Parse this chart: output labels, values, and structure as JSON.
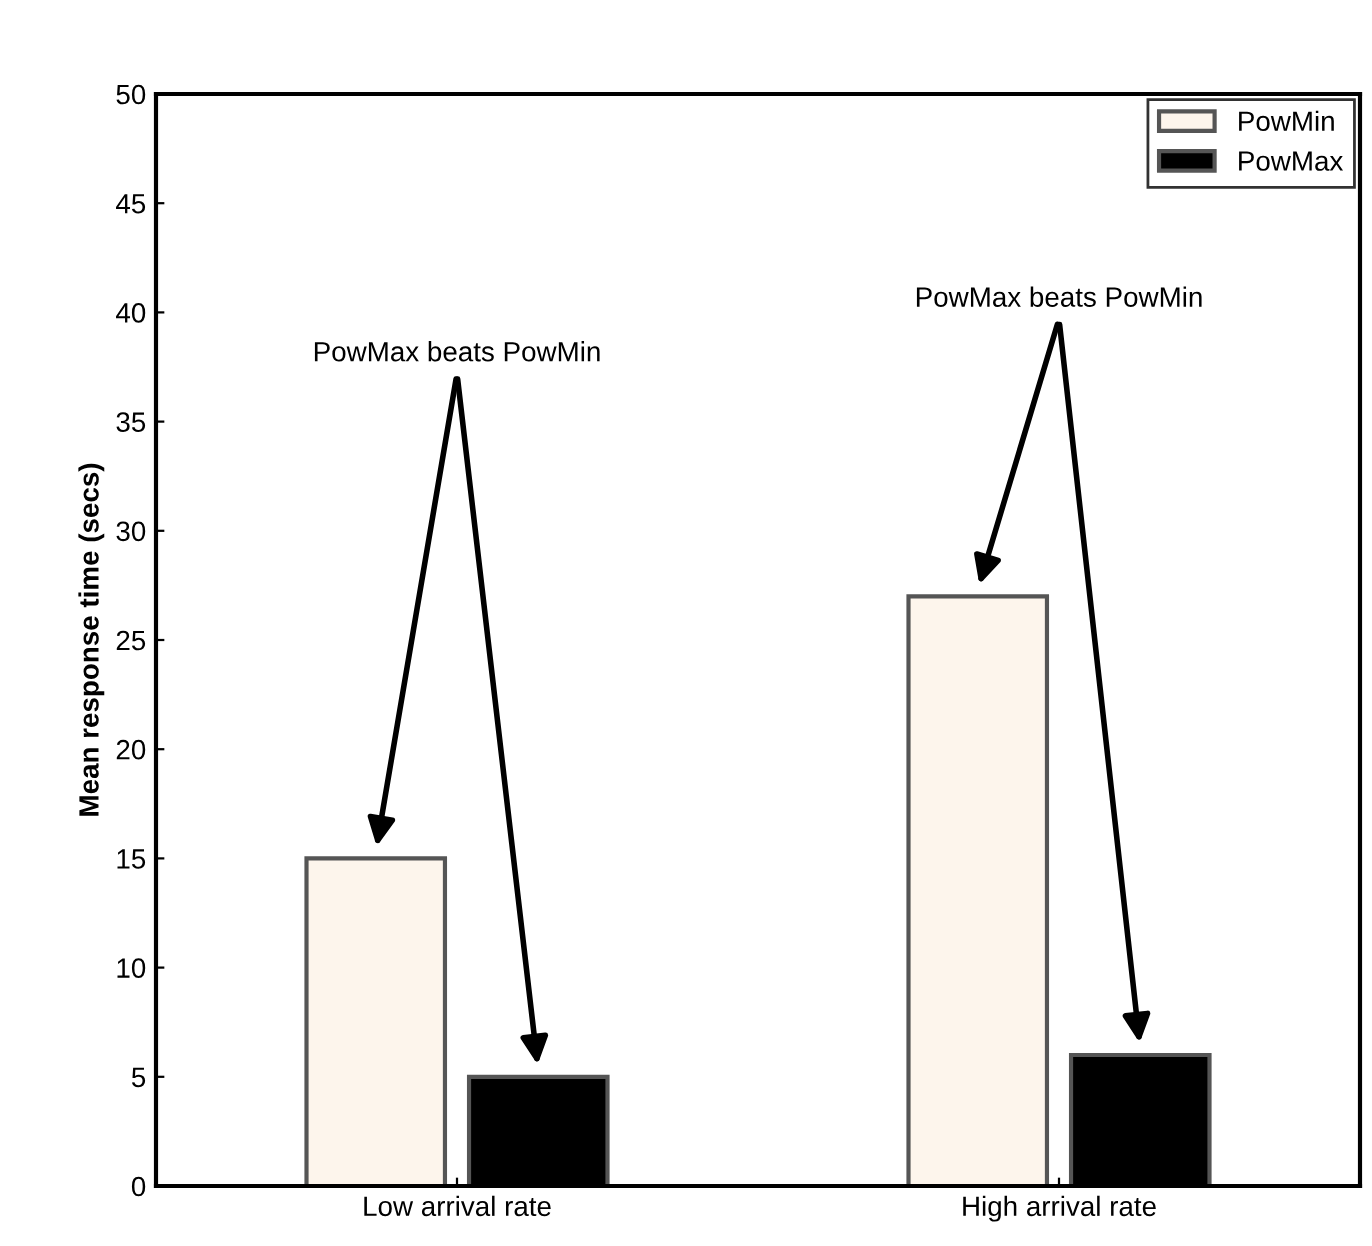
{
  "chart_data": {
    "type": "bar",
    "ylabel": "Mean response time (secs)",
    "categories": [
      "Low arrival rate",
      "High arrival rate"
    ],
    "series": [
      {
        "name": "PowMin",
        "color": "#fdf5ec",
        "values": [
          15,
          27
        ]
      },
      {
        "name": "PowMax",
        "color": "#000000",
        "values": [
          5,
          6
        ]
      }
    ],
    "ylim": [
      0,
      50
    ],
    "yticks": [
      0,
      5,
      10,
      15,
      20,
      25,
      30,
      35,
      40,
      45,
      50
    ],
    "grid": false,
    "legend": "top right",
    "annotations": [
      "PowMax beats PowMin",
      "PowMax beats PowMin"
    ]
  }
}
